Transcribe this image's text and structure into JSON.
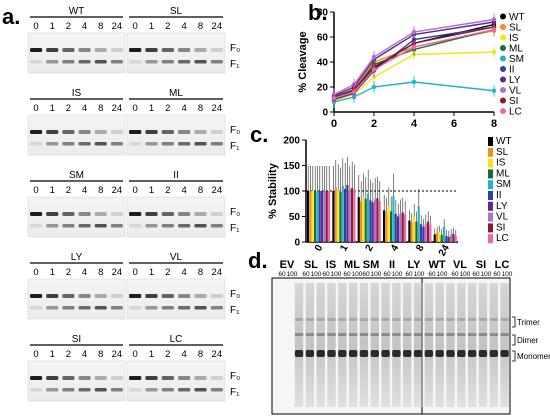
{
  "panels": {
    "a": "a.",
    "b": "b.",
    "c": "c.",
    "d": "d."
  },
  "panel_a": {
    "lane_labels": [
      "0",
      "1",
      "2",
      "4",
      "8",
      "24"
    ],
    "band_labels": {
      "f0": "F₀",
      "f1": "F₁"
    },
    "gels": [
      {
        "left": "WT",
        "right": "SL"
      },
      {
        "left": "IS",
        "right": "ML"
      },
      {
        "left": "SM",
        "right": "II"
      },
      {
        "left": "LY",
        "right": "VL"
      },
      {
        "left": "SI",
        "right": "LC"
      }
    ]
  },
  "legend": [
    {
      "name": "WT",
      "color": "#000000"
    },
    {
      "name": "SL",
      "color": "#f28c28"
    },
    {
      "name": "IS",
      "color": "#f2e51a"
    },
    {
      "name": "ML",
      "color": "#1f6b2e"
    },
    {
      "name": "SM",
      "color": "#20b4c8"
    },
    {
      "name": "II",
      "color": "#2b3fa6"
    },
    {
      "name": "LY",
      "color": "#5a2a8c"
    },
    {
      "name": "VL",
      "color": "#b06fd0"
    },
    {
      "name": "SI",
      "color": "#8a1c2c"
    },
    {
      "name": "LC",
      "color": "#e86aa8"
    }
  ],
  "chart_data": [
    {
      "type": "line",
      "ylabel": "% Cleavage",
      "x": [
        0,
        1,
        2,
        4,
        8
      ],
      "xticks": [
        "0",
        "2",
        "4",
        "6",
        "8"
      ],
      "yticks": [
        "0",
        "20",
        "40",
        "60",
        "80"
      ],
      "xlim": [
        0,
        8
      ],
      "ylim": [
        0,
        80
      ],
      "series": [
        {
          "name": "WT",
          "values": [
            10,
            16,
            35,
            55,
            70
          ]
        },
        {
          "name": "SL",
          "values": [
            12,
            18,
            40,
            52,
            65
          ]
        },
        {
          "name": "IS",
          "values": [
            9,
            14,
            28,
            46,
            48
          ]
        },
        {
          "name": "ML",
          "values": [
            11,
            17,
            38,
            50,
            66
          ]
        },
        {
          "name": "SM",
          "values": [
            8,
            12,
            20,
            24,
            17
          ]
        },
        {
          "name": "II",
          "values": [
            10,
            15,
            33,
            58,
            68
          ]
        },
        {
          "name": "LY",
          "values": [
            13,
            20,
            42,
            62,
            72
          ]
        },
        {
          "name": "VL",
          "values": [
            14,
            22,
            44,
            64,
            74
          ]
        },
        {
          "name": "SI",
          "values": [
            12,
            18,
            36,
            55,
            68
          ]
        },
        {
          "name": "LC",
          "values": [
            11,
            16,
            34,
            52,
            66
          ]
        }
      ]
    },
    {
      "type": "bar",
      "ylabel": "% Stability",
      "categories": [
        "0",
        "1",
        "2",
        "4",
        "8",
        "24"
      ],
      "yticks": [
        "0",
        "50",
        "100",
        "150",
        "200"
      ],
      "ylim": [
        0,
        200
      ],
      "reference_line": 100,
      "series": [
        {
          "name": "WT",
          "values": [
            100,
            100,
            88,
            62,
            42,
            15
          ]
        },
        {
          "name": "SL",
          "values": [
            100,
            108,
            80,
            58,
            38,
            18
          ]
        },
        {
          "name": "IS",
          "values": [
            100,
            102,
            90,
            72,
            50,
            20
          ]
        },
        {
          "name": "ML",
          "values": [
            100,
            98,
            85,
            60,
            40,
            14
          ]
        },
        {
          "name": "SM",
          "values": [
            100,
            110,
            95,
            90,
            70,
            30
          ]
        },
        {
          "name": "II",
          "values": [
            100,
            104,
            82,
            55,
            35,
            12
          ]
        },
        {
          "name": "LY",
          "values": [
            100,
            112,
            78,
            50,
            30,
            10
          ]
        },
        {
          "name": "VL",
          "values": [
            100,
            100,
            84,
            56,
            36,
            14
          ]
        },
        {
          "name": "SI",
          "values": [
            100,
            106,
            86,
            58,
            40,
            16
          ]
        },
        {
          "name": "LC",
          "values": [
            100,
            102,
            80,
            54,
            34,
            12
          ]
        }
      ]
    }
  ],
  "panel_d": {
    "groups": [
      "EV",
      "SL",
      "IS",
      "ML",
      "SM",
      "II",
      "LY",
      "WT",
      "VL",
      "SI",
      "LC"
    ],
    "sub_labels": [
      "60",
      "100"
    ],
    "bands": [
      "Trimer",
      "Dimer",
      "Monomer"
    ]
  }
}
